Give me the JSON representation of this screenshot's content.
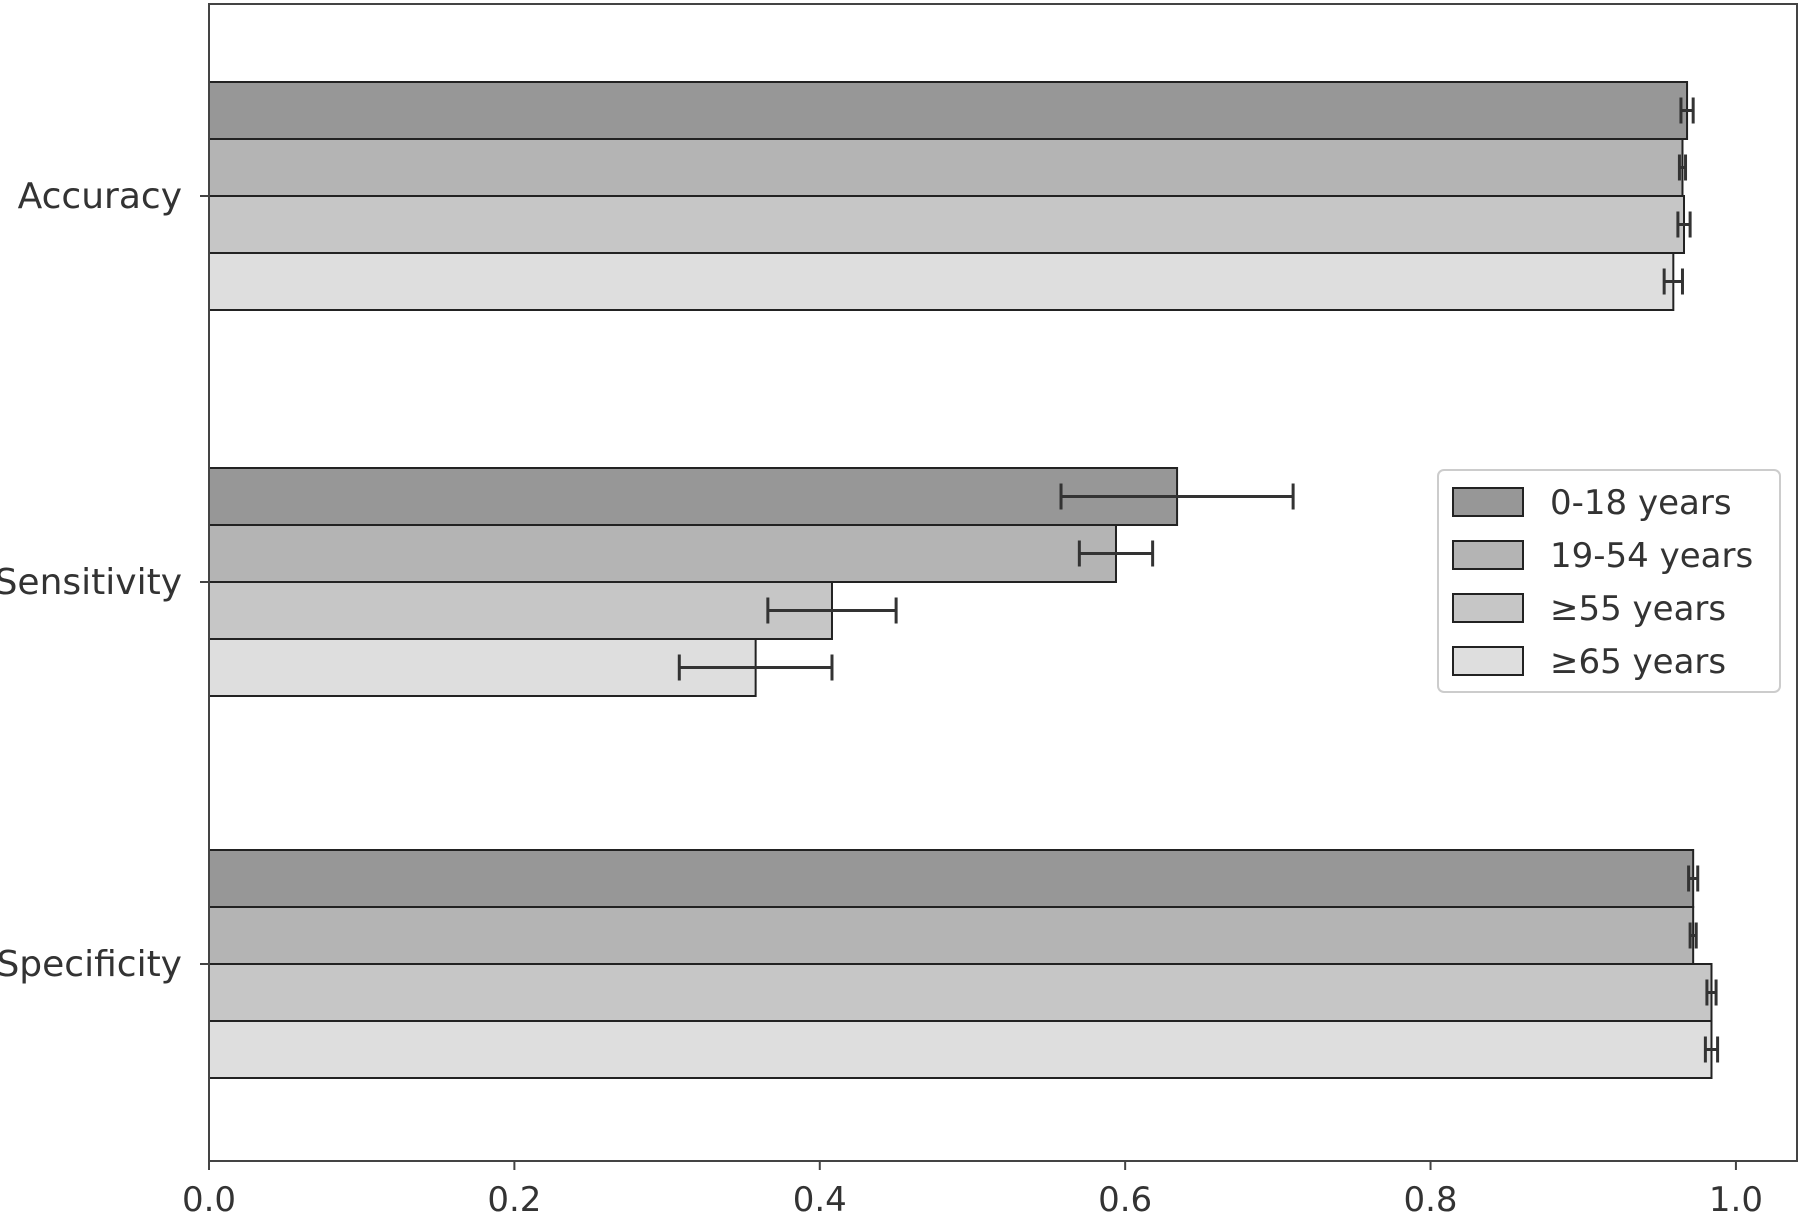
{
  "chart_data": {
    "type": "bar",
    "orientation": "horizontal",
    "categories": [
      "Accuracy",
      "Sensitivity",
      "Specificity"
    ],
    "series": [
      {
        "name": "0-18 years",
        "color": "#979797",
        "values": [
          0.968,
          0.634,
          0.972
        ],
        "errors": [
          0.004,
          0.076,
          0.003
        ]
      },
      {
        "name": "19-54 years",
        "color": "#b4b4b4",
        "values": [
          0.965,
          0.594,
          0.972
        ],
        "errors": [
          0.002,
          0.024,
          0.002
        ]
      },
      {
        "name": "≥55 years",
        "color": "#c6c6c6",
        "values": [
          0.966,
          0.408,
          0.984
        ],
        "errors": [
          0.004,
          0.042,
          0.003
        ]
      },
      {
        "name": "≥65 years",
        "color": "#dedede",
        "values": [
          0.959,
          0.358,
          0.984
        ],
        "errors": [
          0.006,
          0.05,
          0.004
        ]
      }
    ],
    "xlim": [
      0,
      1.04
    ],
    "xticks": [
      {
        "value": 0.0,
        "label": "0.0"
      },
      {
        "value": 0.2,
        "label": "0.2"
      },
      {
        "value": 0.4,
        "label": "0.4"
      },
      {
        "value": 0.6,
        "label": "0.6"
      },
      {
        "value": 0.8,
        "label": "0.8"
      },
      {
        "value": 1.0,
        "label": "1.0"
      }
    ],
    "grid": false,
    "legend_position": "center-right"
  }
}
